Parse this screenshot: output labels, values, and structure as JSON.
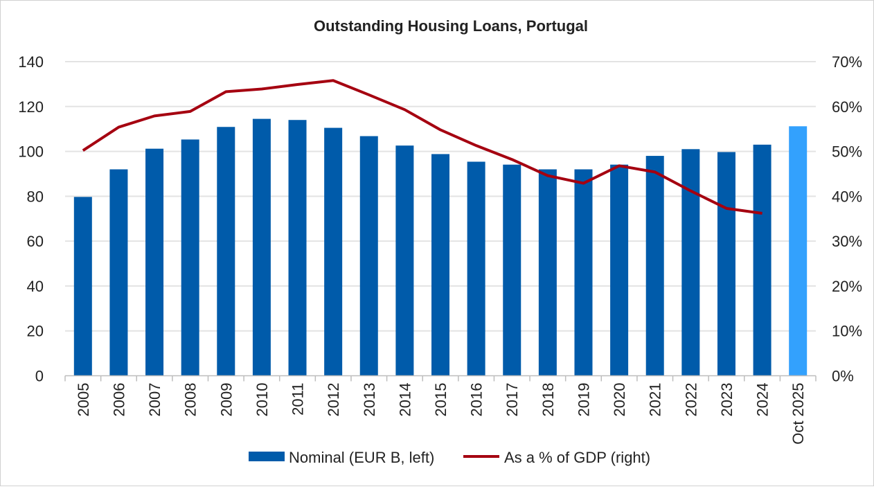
{
  "chart_data": {
    "type": "bar",
    "title": "Outstanding Housing Loans, Portugal",
    "categories": [
      "2005",
      "2006",
      "2007",
      "2008",
      "2009",
      "2010",
      "2011",
      "2012",
      "2013",
      "2014",
      "2015",
      "2016",
      "2017",
      "2018",
      "2019",
      "2020",
      "2021",
      "2022",
      "2023",
      "2024",
      "Oct 2025"
    ],
    "series": [
      {
        "name": "Nominal (EUR B, left)",
        "type": "bar",
        "axis": "left",
        "color": "#005BAA",
        "highlight_last_color": "#33A1FD",
        "values": [
          79.7,
          92,
          101.2,
          105.3,
          110.9,
          114.5,
          114,
          110.5,
          106.8,
          102.6,
          98.8,
          95.4,
          94.1,
          92,
          92,
          94.1,
          98,
          101,
          99.7,
          103,
          111.2
        ]
      },
      {
        "name": "As a % of GDP (right)",
        "type": "line",
        "axis": "right",
        "color": "#A50010",
        "values": [
          50.2,
          55.4,
          57.9,
          58.9,
          63.3,
          63.9,
          64.9,
          65.8,
          62.6,
          59.3,
          54.8,
          51.3,
          48.2,
          44.6,
          42.9,
          46.8,
          45.4,
          41.2,
          37.3,
          36.2,
          null
        ]
      }
    ],
    "left_axis": {
      "ylim": [
        0,
        140
      ],
      "ticks": [
        "0",
        "20",
        "40",
        "60",
        "80",
        "100",
        "120",
        "140"
      ]
    },
    "right_axis": {
      "ylim": [
        0,
        70
      ],
      "ticks": [
        "0%",
        "10%",
        "20%",
        "30%",
        "40%",
        "50%",
        "60%",
        "70%"
      ]
    },
    "grid": true,
    "legend": "bottom"
  }
}
